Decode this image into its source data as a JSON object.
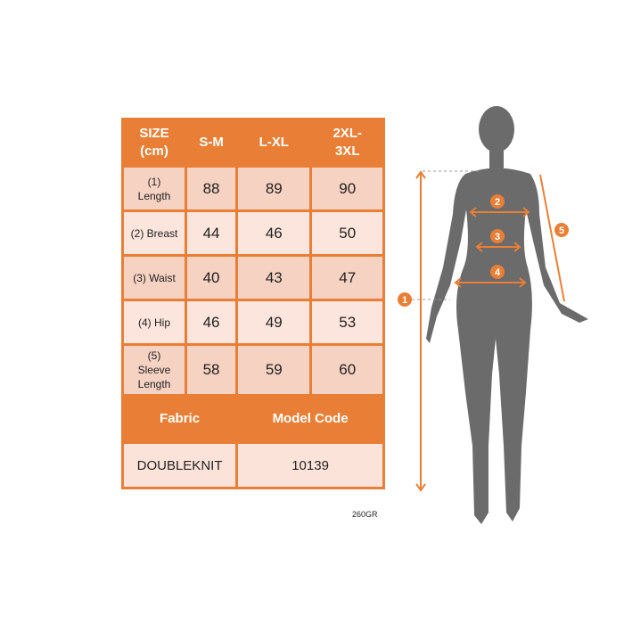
{
  "table": {
    "headers": [
      "SIZE\n(cm)",
      "S-M",
      "L-XL",
      "2XL-\n3XL"
    ],
    "rows": [
      {
        "label": "(1)\nLength",
        "values": [
          "88",
          "89",
          "90"
        ]
      },
      {
        "label": "(2) Breast",
        "values": [
          "44",
          "46",
          "50"
        ]
      },
      {
        "label": "(3) Waist",
        "values": [
          "40",
          "43",
          "47"
        ]
      },
      {
        "label": "(4) Hip",
        "values": [
          "46",
          "49",
          "53"
        ]
      },
      {
        "label": "(5)\nSleeve\nLength",
        "values": [
          "58",
          "59",
          "60"
        ]
      }
    ],
    "footer_headers": [
      "Fabric",
      "Model Code"
    ],
    "footer_values": [
      "DOUBLEKNIT",
      "10139"
    ]
  },
  "note": "260GR",
  "diagram": {
    "markers": [
      "1",
      "2",
      "3",
      "4",
      "5"
    ],
    "accent": "#e97f36",
    "silhouette": "#6b6b6b"
  }
}
